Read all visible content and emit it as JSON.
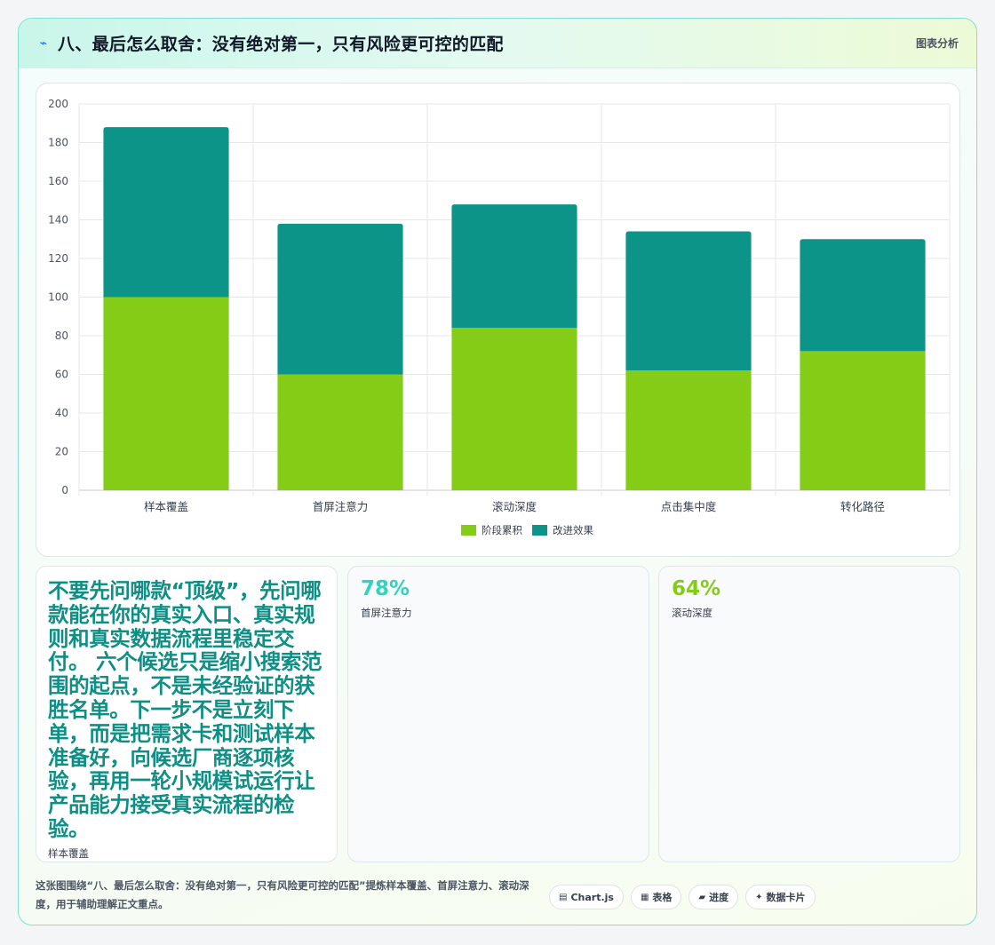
{
  "header": {
    "icon": "lightning-icon",
    "title": "八、最后怎么取舍：没有绝对第一，只有风险更可控的匹配",
    "tag": "图表分析"
  },
  "chart_data": {
    "type": "bar",
    "stacked": true,
    "categories": [
      "样本覆盖",
      "首屏注意力",
      "滚动深度",
      "点击集中度",
      "转化路径"
    ],
    "series": [
      {
        "name": "阶段累积",
        "color": "#84cc16",
        "values": [
          100,
          60,
          84,
          62,
          72
        ]
      },
      {
        "name": "改进效果",
        "color": "#0d9488",
        "values": [
          88,
          78,
          64,
          72,
          58
        ]
      }
    ],
    "ylim": [
      0,
      200
    ],
    "yticks": [
      0,
      20,
      40,
      60,
      80,
      100,
      120,
      140,
      160,
      180,
      200
    ],
    "grid": true,
    "legend_position": "bottom"
  },
  "kpis": [
    {
      "value": "不要先问哪款“顶级”，先问哪款能在你的真实入口、真实规则和真实数据流程里稳定交付。 六个候选只是缩小搜索范围的起点，不是未经验证的获胜名单。下一步不是立刻下单，而是把需求卡和测试样本准备好，向候选厂商逐项核验，再用一轮小规模试运行让产品能力接受真实流程的检验。",
      "label": "样本覆盖",
      "color": "#0e8f85"
    },
    {
      "value": "78%",
      "label": "首屏注意力",
      "color": "#2dd4bf"
    },
    {
      "value": "64%",
      "label": "滚动深度",
      "color": "#84cc16"
    }
  ],
  "footer": {
    "text": "这张图围绕“八、最后怎么取舍：没有绝对第一，只有风险更可控的匹配”提炼样本覆盖、首屏注意力、滚动深度，用于辅助理解正文重点。",
    "chips": [
      {
        "icon": "chart-icon",
        "label": "Chart.js"
      },
      {
        "icon": "table-icon",
        "label": "表格"
      },
      {
        "icon": "progress-icon",
        "label": "进度"
      },
      {
        "icon": "sparkle-icon",
        "label": "数据卡片"
      }
    ]
  }
}
